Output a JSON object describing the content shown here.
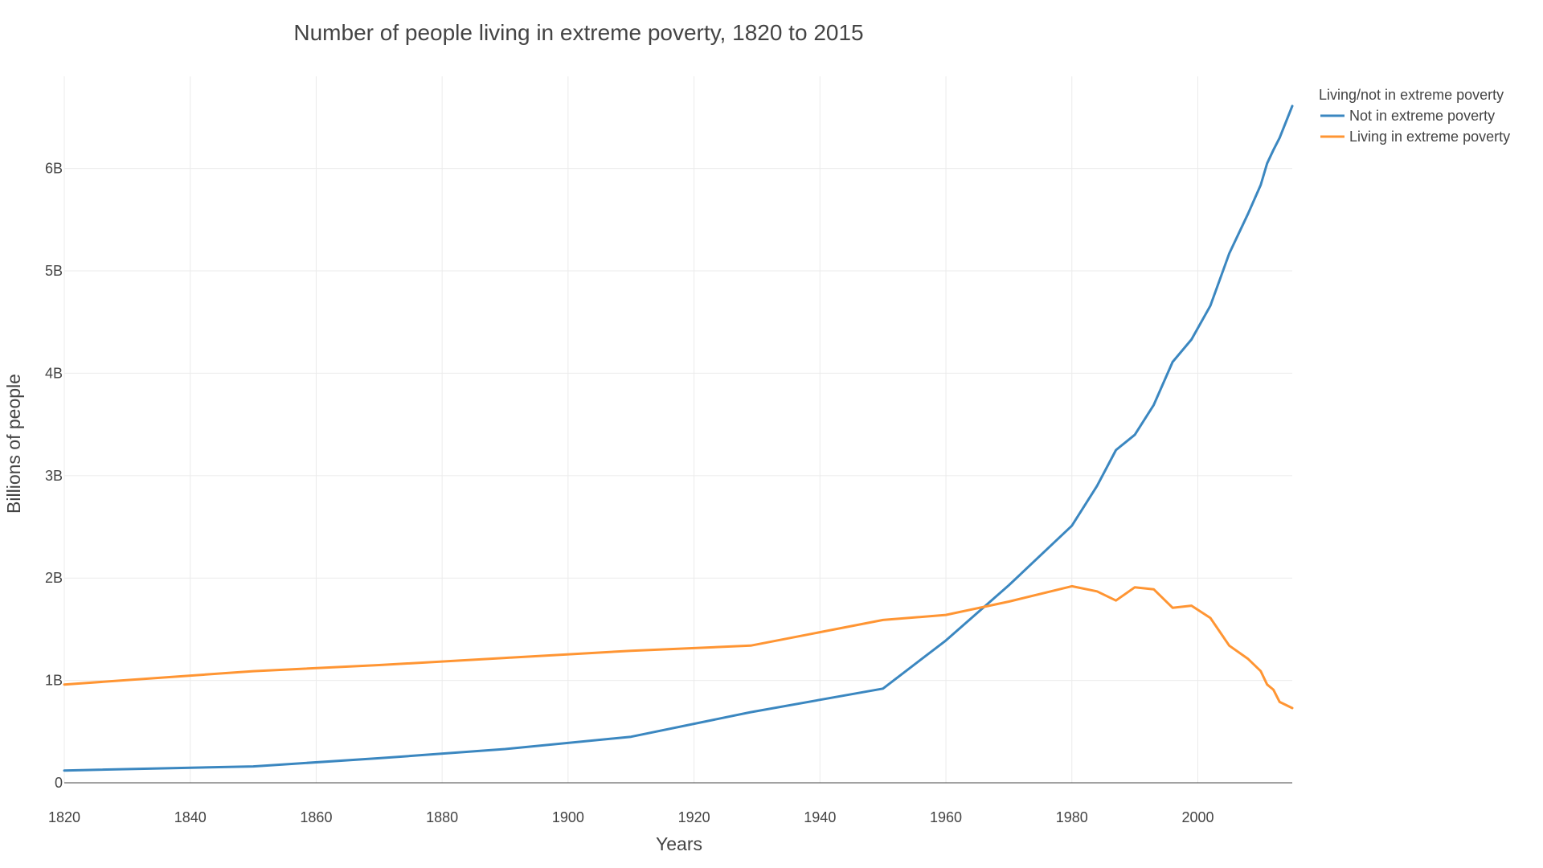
{
  "chart_data": {
    "type": "line",
    "title": "Number of people living in extreme poverty, 1820 to 2015",
    "xlabel": "Years",
    "ylabel": "Billions of people",
    "xlim": [
      1820,
      2015
    ],
    "ylim": [
      0,
      6.9
    ],
    "x_ticks": [
      1820,
      1840,
      1860,
      1880,
      1900,
      1920,
      1940,
      1960,
      1980,
      2000
    ],
    "x_tick_labels": [
      "1820",
      "1840",
      "1860",
      "1880",
      "1900",
      "1920",
      "1940",
      "1960",
      "1980",
      "2000"
    ],
    "y_ticks": [
      0,
      1,
      2,
      3,
      4,
      5,
      6
    ],
    "y_tick_labels": [
      "0",
      "1B",
      "2B",
      "3B",
      "4B",
      "5B",
      "6B"
    ],
    "grid": true,
    "legend": {
      "title": "Living/not in extreme poverty",
      "position": "top-right"
    },
    "series": [
      {
        "name": "Not in extreme poverty",
        "color": "#3b87c0",
        "x": [
          1820,
          1850,
          1870,
          1890,
          1910,
          1929,
          1950,
          1960,
          1970,
          1980,
          1984,
          1987,
          1990,
          1993,
          1996,
          1999,
          2002,
          2005,
          2008,
          2010,
          2011,
          2012,
          2013,
          2015
        ],
        "y": [
          0.12,
          0.16,
          0.24,
          0.33,
          0.45,
          0.69,
          0.92,
          1.39,
          1.93,
          2.51,
          2.9,
          3.25,
          3.4,
          3.69,
          4.11,
          4.33,
          4.66,
          5.17,
          5.56,
          5.84,
          6.05,
          6.18,
          6.3,
          6.61
        ]
      },
      {
        "name": "Living in extreme poverty",
        "color": "#ff9533",
        "x": [
          1820,
          1850,
          1870,
          1890,
          1910,
          1929,
          1950,
          1960,
          1970,
          1980,
          1984,
          1987,
          1990,
          1993,
          1996,
          1999,
          2002,
          2005,
          2008,
          2010,
          2011,
          2012,
          2013,
          2015
        ],
        "y": [
          0.96,
          1.09,
          1.15,
          1.22,
          1.29,
          1.34,
          1.59,
          1.64,
          1.77,
          1.92,
          1.87,
          1.78,
          1.91,
          1.89,
          1.71,
          1.73,
          1.61,
          1.34,
          1.21,
          1.09,
          0.96,
          0.91,
          0.79,
          0.73
        ]
      }
    ]
  }
}
